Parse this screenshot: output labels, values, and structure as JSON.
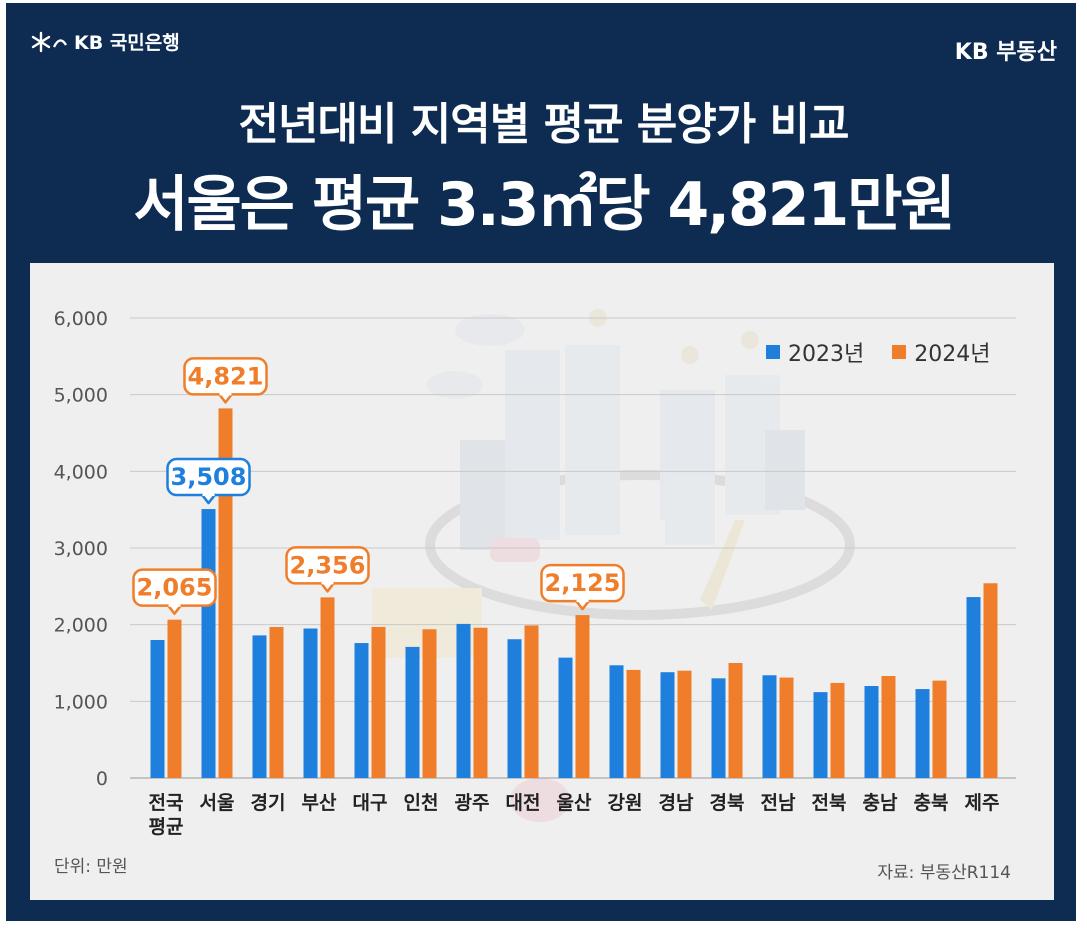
{
  "brand": {
    "left_logo": "KB 국민은행",
    "right_logo": "KB 부동산"
  },
  "title": {
    "line1": "전년대비 지역별 평균 분양가 비교",
    "line2": "서울은 평균 3.3㎡당 4,821만원"
  },
  "notes": {
    "unit": "단위: 만원",
    "source": "자료: 부동산R114"
  },
  "colors": {
    "navy": "#0e2c52",
    "series2023": "#1f7fdc",
    "series2024": "#f07d2a"
  },
  "chart_data": {
    "type": "bar",
    "title": "전년대비 지역별 평균 분양가 비교",
    "ylabel": "",
    "xlabel": "",
    "ylim": [
      0,
      6000
    ],
    "yticks": [
      "0",
      "1,000",
      "2,000",
      "3,000",
      "4,000",
      "5,000",
      "6,000"
    ],
    "ytick_values": [
      0,
      1000,
      2000,
      3000,
      4000,
      5000,
      6000
    ],
    "legend_position": "top-right",
    "categories": [
      "전국\n평균",
      "서울",
      "경기",
      "부산",
      "대구",
      "인천",
      "광주",
      "대전",
      "울산",
      "강원",
      "경남",
      "경북",
      "전남",
      "전북",
      "충남",
      "충북",
      "제주"
    ],
    "series": [
      {
        "name": "2023년",
        "values": [
          1800,
          3508,
          1860,
          1950,
          1760,
          1710,
          2010,
          1810,
          1570,
          1470,
          1380,
          1300,
          1340,
          1120,
          1200,
          1160,
          2360
        ]
      },
      {
        "name": "2024년",
        "values": [
          2065,
          4821,
          1970,
          2356,
          1970,
          1940,
          1960,
          1990,
          2125,
          1410,
          1400,
          1500,
          1310,
          1240,
          1330,
          1270,
          2540
        ]
      }
    ],
    "callouts": [
      {
        "label": "2,065",
        "category_index": 0,
        "series_index": 1
      },
      {
        "label": "3,508",
        "category_index": 1,
        "series_index": 0
      },
      {
        "label": "4,821",
        "category_index": 1,
        "series_index": 1
      },
      {
        "label": "2,356",
        "category_index": 3,
        "series_index": 1
      },
      {
        "label": "2,125",
        "category_index": 8,
        "series_index": 1
      }
    ]
  }
}
